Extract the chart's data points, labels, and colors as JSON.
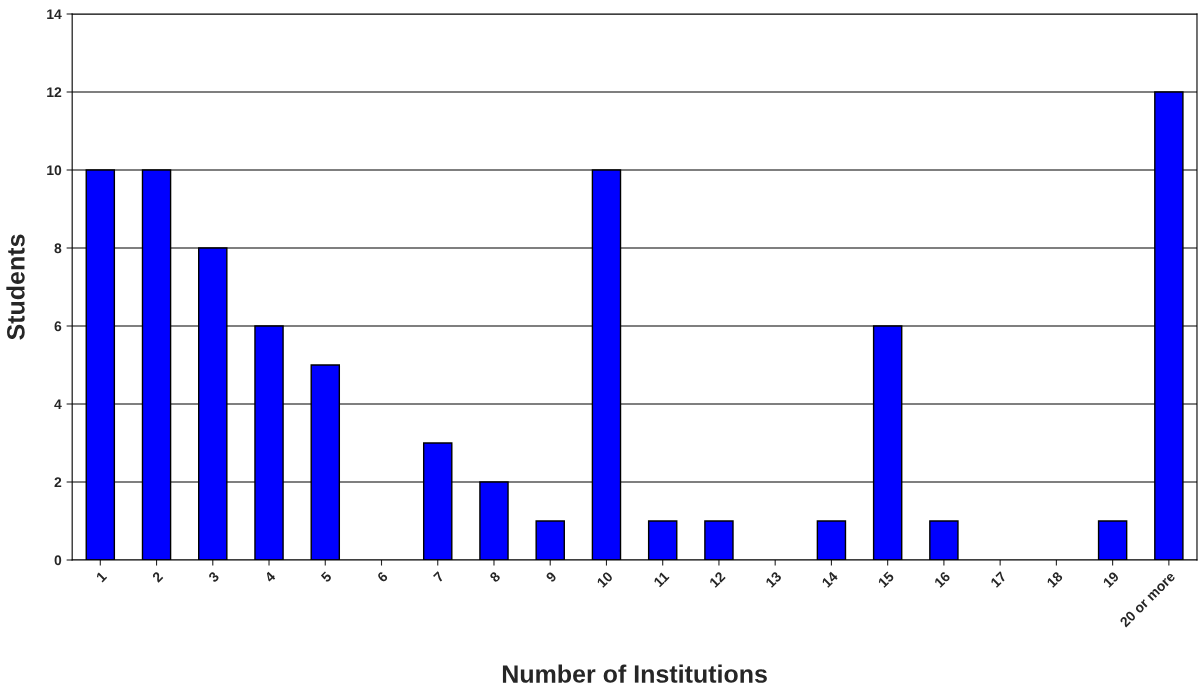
{
  "chart_data": {
    "type": "bar",
    "xlabel": "Number of Institutions",
    "ylabel": "Students",
    "categories": [
      "1",
      "2",
      "3",
      "4",
      "5",
      "6",
      "7",
      "8",
      "9",
      "10",
      "11",
      "12",
      "13",
      "14",
      "15",
      "16",
      "17",
      "18",
      "19",
      "20 or more"
    ],
    "values": [
      10,
      10,
      8,
      6,
      5,
      0,
      3,
      2,
      1,
      10,
      1,
      1,
      0,
      1,
      6,
      1,
      0,
      0,
      1,
      12
    ],
    "color": "#0000ff",
    "ylim": [
      0,
      14
    ],
    "yticks": [
      0,
      2,
      4,
      6,
      8,
      10,
      12,
      14
    ],
    "grid": "y"
  }
}
